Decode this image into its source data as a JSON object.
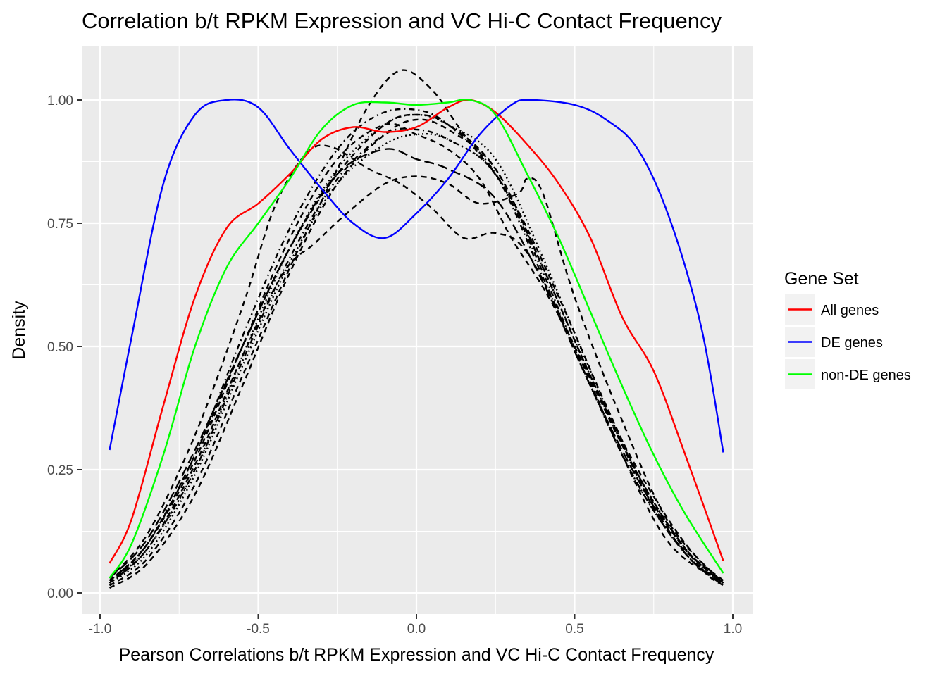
{
  "chart_data": {
    "type": "line",
    "title": "Correlation b/t RPKM Expression and VC Hi-C Contact Frequency",
    "xlabel": "Pearson Correlations b/t RPKM Expression and VC Hi-C Contact Frequency",
    "ylabel": "Density",
    "xlim": [
      -1.0,
      1.0
    ],
    "ylim": [
      0.0,
      1.0
    ],
    "x_ticks": [
      -1.0,
      -0.5,
      0.0,
      0.5,
      1.0
    ],
    "x_tick_labels": [
      "-1.0",
      "-0.5",
      "0.0",
      "0.5",
      "1.0"
    ],
    "y_ticks": [
      0.0,
      0.25,
      0.5,
      0.75,
      1.0
    ],
    "y_tick_labels": [
      "0.00",
      "0.25",
      "0.50",
      "0.75",
      "1.00"
    ],
    "grid": true,
    "legend": {
      "title": "Gene Set",
      "position": "right"
    },
    "series": [
      {
        "name": "All genes",
        "color": "#ff0000",
        "dash": "solid",
        "points": [
          [
            -0.97,
            0.06
          ],
          [
            -0.9,
            0.15
          ],
          [
            -0.8,
            0.38
          ],
          [
            -0.7,
            0.6
          ],
          [
            -0.6,
            0.74
          ],
          [
            -0.5,
            0.79
          ],
          [
            -0.4,
            0.85
          ],
          [
            -0.3,
            0.92
          ],
          [
            -0.2,
            0.945
          ],
          [
            -0.1,
            0.935
          ],
          [
            0.0,
            0.945
          ],
          [
            0.1,
            0.985
          ],
          [
            0.17,
            1.0
          ],
          [
            0.25,
            0.975
          ],
          [
            0.35,
            0.91
          ],
          [
            0.45,
            0.83
          ],
          [
            0.55,
            0.72
          ],
          [
            0.65,
            0.56
          ],
          [
            0.75,
            0.45
          ],
          [
            0.85,
            0.28
          ],
          [
            0.97,
            0.065
          ]
        ]
      },
      {
        "name": "DE genes",
        "color": "#0000ff",
        "dash": "solid",
        "points": [
          [
            -0.97,
            0.29
          ],
          [
            -0.9,
            0.52
          ],
          [
            -0.8,
            0.83
          ],
          [
            -0.7,
            0.97
          ],
          [
            -0.6,
            1.0
          ],
          [
            -0.5,
            0.985
          ],
          [
            -0.4,
            0.9
          ],
          [
            -0.3,
            0.82
          ],
          [
            -0.2,
            0.75
          ],
          [
            -0.1,
            0.72
          ],
          [
            0.0,
            0.77
          ],
          [
            0.1,
            0.84
          ],
          [
            0.2,
            0.93
          ],
          [
            0.3,
            0.99
          ],
          [
            0.36,
            1.0
          ],
          [
            0.5,
            0.99
          ],
          [
            0.6,
            0.96
          ],
          [
            0.7,
            0.9
          ],
          [
            0.8,
            0.76
          ],
          [
            0.9,
            0.54
          ],
          [
            0.97,
            0.285
          ]
        ]
      },
      {
        "name": "non-DE genes",
        "color": "#00ff00",
        "dash": "solid",
        "points": [
          [
            -0.97,
            0.03
          ],
          [
            -0.9,
            0.1
          ],
          [
            -0.8,
            0.28
          ],
          [
            -0.7,
            0.5
          ],
          [
            -0.6,
            0.66
          ],
          [
            -0.5,
            0.75
          ],
          [
            -0.4,
            0.84
          ],
          [
            -0.3,
            0.94
          ],
          [
            -0.2,
            0.99
          ],
          [
            -0.1,
            0.995
          ],
          [
            0.0,
            0.99
          ],
          [
            0.1,
            0.995
          ],
          [
            0.17,
            1.0
          ],
          [
            0.25,
            0.97
          ],
          [
            0.35,
            0.85
          ],
          [
            0.45,
            0.72
          ],
          [
            0.55,
            0.57
          ],
          [
            0.65,
            0.42
          ],
          [
            0.75,
            0.28
          ],
          [
            0.85,
            0.16
          ],
          [
            0.97,
            0.04
          ]
        ]
      },
      {
        "name": "",
        "color": "#000000",
        "dash": "dashed",
        "points": [
          [
            -0.97,
            0.02
          ],
          [
            -0.85,
            0.1
          ],
          [
            -0.7,
            0.28
          ],
          [
            -0.55,
            0.5
          ],
          [
            -0.4,
            0.7
          ],
          [
            -0.25,
            0.85
          ],
          [
            -0.1,
            0.95
          ],
          [
            0.0,
            0.97
          ],
          [
            0.1,
            0.95
          ],
          [
            0.25,
            0.86
          ],
          [
            0.4,
            0.66
          ],
          [
            0.55,
            0.44
          ],
          [
            0.7,
            0.24
          ],
          [
            0.85,
            0.09
          ],
          [
            0.97,
            0.02
          ]
        ]
      },
      {
        "name": "",
        "color": "#000000",
        "dash": "dashed",
        "points": [
          [
            -0.97,
            0.015
          ],
          [
            -0.85,
            0.07
          ],
          [
            -0.7,
            0.22
          ],
          [
            -0.55,
            0.44
          ],
          [
            -0.4,
            0.66
          ],
          [
            -0.25,
            0.86
          ],
          [
            -0.15,
            0.99
          ],
          [
            -0.05,
            1.06
          ],
          [
            0.05,
            1.02
          ],
          [
            0.15,
            0.93
          ],
          [
            0.3,
            0.8
          ],
          [
            0.45,
            0.6
          ],
          [
            0.6,
            0.38
          ],
          [
            0.75,
            0.18
          ],
          [
            0.9,
            0.05
          ],
          [
            0.97,
            0.015
          ]
        ]
      },
      {
        "name": "",
        "color": "#000000",
        "dash": "dashed",
        "points": [
          [
            -0.97,
            0.03
          ],
          [
            -0.85,
            0.12
          ],
          [
            -0.7,
            0.32
          ],
          [
            -0.55,
            0.58
          ],
          [
            -0.45,
            0.78
          ],
          [
            -0.35,
            0.89
          ],
          [
            -0.27,
            0.905
          ],
          [
            -0.15,
            0.86
          ],
          [
            -0.05,
            0.83
          ],
          [
            0.05,
            0.78
          ],
          [
            0.15,
            0.72
          ],
          [
            0.25,
            0.73
          ],
          [
            0.35,
            0.69
          ],
          [
            0.5,
            0.5
          ],
          [
            0.65,
            0.28
          ],
          [
            0.8,
            0.1
          ],
          [
            0.97,
            0.02
          ]
        ]
      },
      {
        "name": "",
        "color": "#000000",
        "dash": "dashed",
        "points": [
          [
            -0.97,
            0.02
          ],
          [
            -0.85,
            0.09
          ],
          [
            -0.7,
            0.26
          ],
          [
            -0.55,
            0.48
          ],
          [
            -0.42,
            0.65
          ],
          [
            -0.32,
            0.71
          ],
          [
            -0.22,
            0.77
          ],
          [
            -0.1,
            0.83
          ],
          [
            0.0,
            0.845
          ],
          [
            0.1,
            0.83
          ],
          [
            0.2,
            0.79
          ],
          [
            0.32,
            0.81
          ],
          [
            0.35,
            0.84
          ],
          [
            0.4,
            0.81
          ],
          [
            0.5,
            0.6
          ],
          [
            0.65,
            0.35
          ],
          [
            0.8,
            0.14
          ],
          [
            0.97,
            0.02
          ]
        ]
      },
      {
        "name": "",
        "color": "#000000",
        "dash": "dashed",
        "points": [
          [
            -0.97,
            0.025
          ],
          [
            -0.85,
            0.1
          ],
          [
            -0.7,
            0.27
          ],
          [
            -0.55,
            0.5
          ],
          [
            -0.4,
            0.72
          ],
          [
            -0.25,
            0.88
          ],
          [
            -0.1,
            0.95
          ],
          [
            0.0,
            0.93
          ],
          [
            0.1,
            0.9
          ],
          [
            0.2,
            0.84
          ],
          [
            0.3,
            0.72
          ],
          [
            0.4,
            0.62
          ],
          [
            0.5,
            0.5
          ],
          [
            0.65,
            0.3
          ],
          [
            0.8,
            0.12
          ],
          [
            0.97,
            0.025
          ]
        ]
      },
      {
        "name": "",
        "color": "#000000",
        "dash": "dashdot",
        "points": [
          [
            -0.97,
            0.025
          ],
          [
            -0.85,
            0.1
          ],
          [
            -0.7,
            0.28
          ],
          [
            -0.55,
            0.52
          ],
          [
            -0.4,
            0.74
          ],
          [
            -0.25,
            0.9
          ],
          [
            -0.12,
            0.97
          ],
          [
            0.0,
            0.98
          ],
          [
            0.1,
            0.95
          ],
          [
            0.25,
            0.85
          ],
          [
            0.4,
            0.64
          ],
          [
            0.55,
            0.42
          ],
          [
            0.7,
            0.22
          ],
          [
            0.85,
            0.08
          ],
          [
            0.97,
            0.02
          ]
        ]
      },
      {
        "name": "",
        "color": "#000000",
        "dash": "dotted",
        "points": [
          [
            -0.97,
            0.02
          ],
          [
            -0.85,
            0.08
          ],
          [
            -0.7,
            0.24
          ],
          [
            -0.55,
            0.46
          ],
          [
            -0.4,
            0.67
          ],
          [
            -0.25,
            0.83
          ],
          [
            -0.1,
            0.91
          ],
          [
            0.0,
            0.93
          ],
          [
            0.1,
            0.92
          ],
          [
            0.25,
            0.85
          ],
          [
            0.4,
            0.66
          ],
          [
            0.55,
            0.44
          ],
          [
            0.7,
            0.24
          ],
          [
            0.85,
            0.09
          ],
          [
            0.97,
            0.02
          ]
        ]
      },
      {
        "name": "",
        "color": "#000000",
        "dash": "dotted",
        "points": [
          [
            -0.97,
            0.025
          ],
          [
            -0.85,
            0.09
          ],
          [
            -0.7,
            0.25
          ],
          [
            -0.55,
            0.48
          ],
          [
            -0.4,
            0.7
          ],
          [
            -0.25,
            0.86
          ],
          [
            -0.1,
            0.95
          ],
          [
            0.0,
            0.97
          ],
          [
            0.1,
            0.95
          ],
          [
            0.25,
            0.88
          ],
          [
            0.4,
            0.68
          ],
          [
            0.55,
            0.45
          ],
          [
            0.7,
            0.24
          ],
          [
            0.85,
            0.09
          ],
          [
            0.97,
            0.02
          ]
        ]
      },
      {
        "name": "",
        "color": "#000000",
        "dash": "dashdot",
        "points": [
          [
            -0.97,
            0.02
          ],
          [
            -0.85,
            0.09
          ],
          [
            -0.7,
            0.25
          ],
          [
            -0.55,
            0.47
          ],
          [
            -0.4,
            0.68
          ],
          [
            -0.25,
            0.84
          ],
          [
            -0.1,
            0.93
          ],
          [
            0.0,
            0.94
          ],
          [
            0.1,
            0.92
          ],
          [
            0.25,
            0.85
          ],
          [
            0.4,
            0.65
          ],
          [
            0.55,
            0.42
          ],
          [
            0.7,
            0.22
          ],
          [
            0.85,
            0.08
          ],
          [
            0.97,
            0.02
          ]
        ]
      },
      {
        "name": "",
        "color": "#000000",
        "dash": "dashed",
        "points": [
          [
            -0.97,
            0.01
          ],
          [
            -0.85,
            0.06
          ],
          [
            -0.7,
            0.2
          ],
          [
            -0.55,
            0.42
          ],
          [
            -0.4,
            0.65
          ],
          [
            -0.25,
            0.83
          ],
          [
            -0.1,
            0.93
          ],
          [
            0.0,
            0.96
          ],
          [
            0.1,
            0.94
          ],
          [
            0.25,
            0.86
          ],
          [
            0.4,
            0.66
          ],
          [
            0.55,
            0.44
          ],
          [
            0.7,
            0.25
          ],
          [
            0.85,
            0.1
          ],
          [
            0.97,
            0.02
          ]
        ]
      },
      {
        "name": "",
        "color": "#000000",
        "dash": "longdash",
        "points": [
          [
            -0.97,
            0.03
          ],
          [
            -0.85,
            0.11
          ],
          [
            -0.7,
            0.29
          ],
          [
            -0.55,
            0.5
          ],
          [
            -0.4,
            0.7
          ],
          [
            -0.25,
            0.85
          ],
          [
            -0.1,
            0.9
          ],
          [
            0.0,
            0.88
          ],
          [
            0.1,
            0.86
          ],
          [
            0.25,
            0.8
          ],
          [
            0.4,
            0.63
          ],
          [
            0.55,
            0.42
          ],
          [
            0.7,
            0.23
          ],
          [
            0.85,
            0.08
          ],
          [
            0.97,
            0.015
          ]
        ]
      }
    ]
  }
}
